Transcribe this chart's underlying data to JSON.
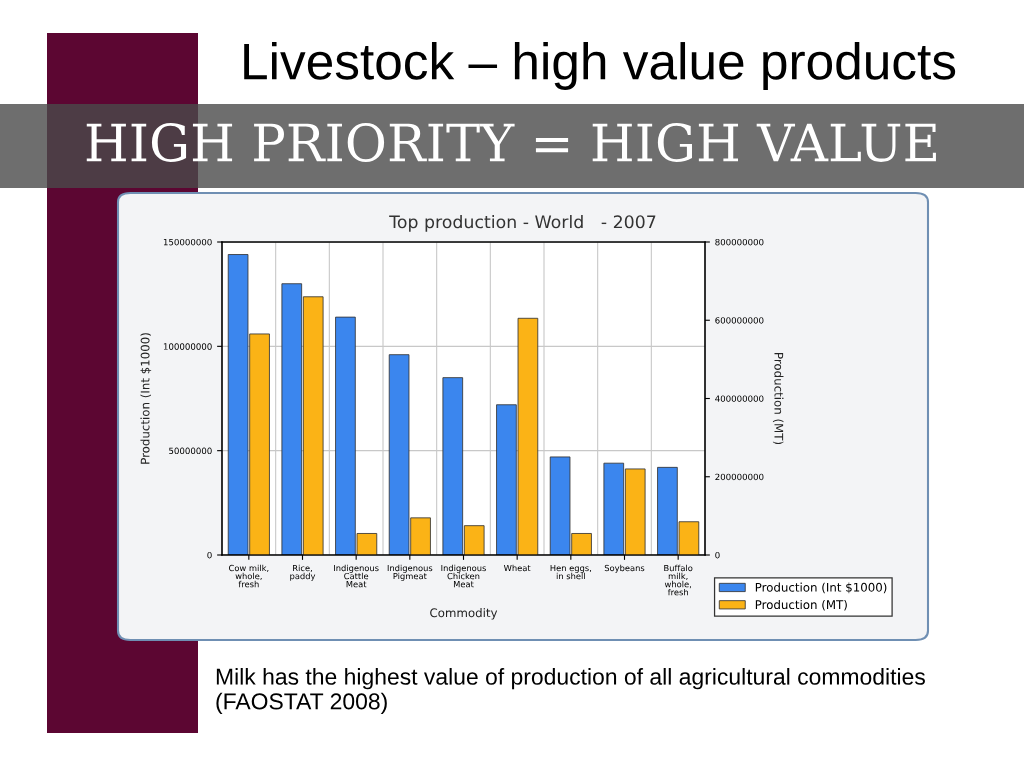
{
  "chart_data": {
    "type": "bar",
    "title": "Top production - World   - 2007",
    "xlabel": "Commodity",
    "ylabel": "Production (Int $1000)",
    "y2label": "Production (MT)",
    "categories": [
      "Cow milk, whole, fresh",
      "Rice, paddy",
      "Indigenous Cattle Meat",
      "Indigenous Pigmeat",
      "Indigenous Chicken Meat",
      "Wheat",
      "Hen eggs, in shell",
      "Soybeans",
      "Buffalo milk, whole, fresh"
    ],
    "series": [
      {
        "name": "Production (Int $1000)",
        "color": "#3b86ee",
        "values": [
          144000000,
          130000000,
          114000000,
          96000000,
          85000000,
          72000000,
          47000000,
          44000000,
          42000000
        ]
      },
      {
        "name": "Production (MT)",
        "color": "#fbb316",
        "axis": "y2",
        "values": [
          565000000,
          660000000,
          55000000,
          95000000,
          75000000,
          605000000,
          55000000,
          220000000,
          85000000
        ]
      }
    ],
    "ylim": [
      0,
      150000000
    ],
    "yticks": [
      0,
      50000000,
      100000000,
      150000000
    ],
    "y2lim": [
      0,
      800000000
    ],
    "y2ticks": [
      0,
      200000000,
      400000000,
      600000000,
      800000000
    ],
    "grid": true,
    "legend": "bottom right",
    "annotations": [
      "Livestock – high value products",
      "HIGH PRIORITY = HIGH VALUE",
      "Milk has the highest value of production of all agricultural commodities (FAOSTAT 2008)"
    ]
  }
}
